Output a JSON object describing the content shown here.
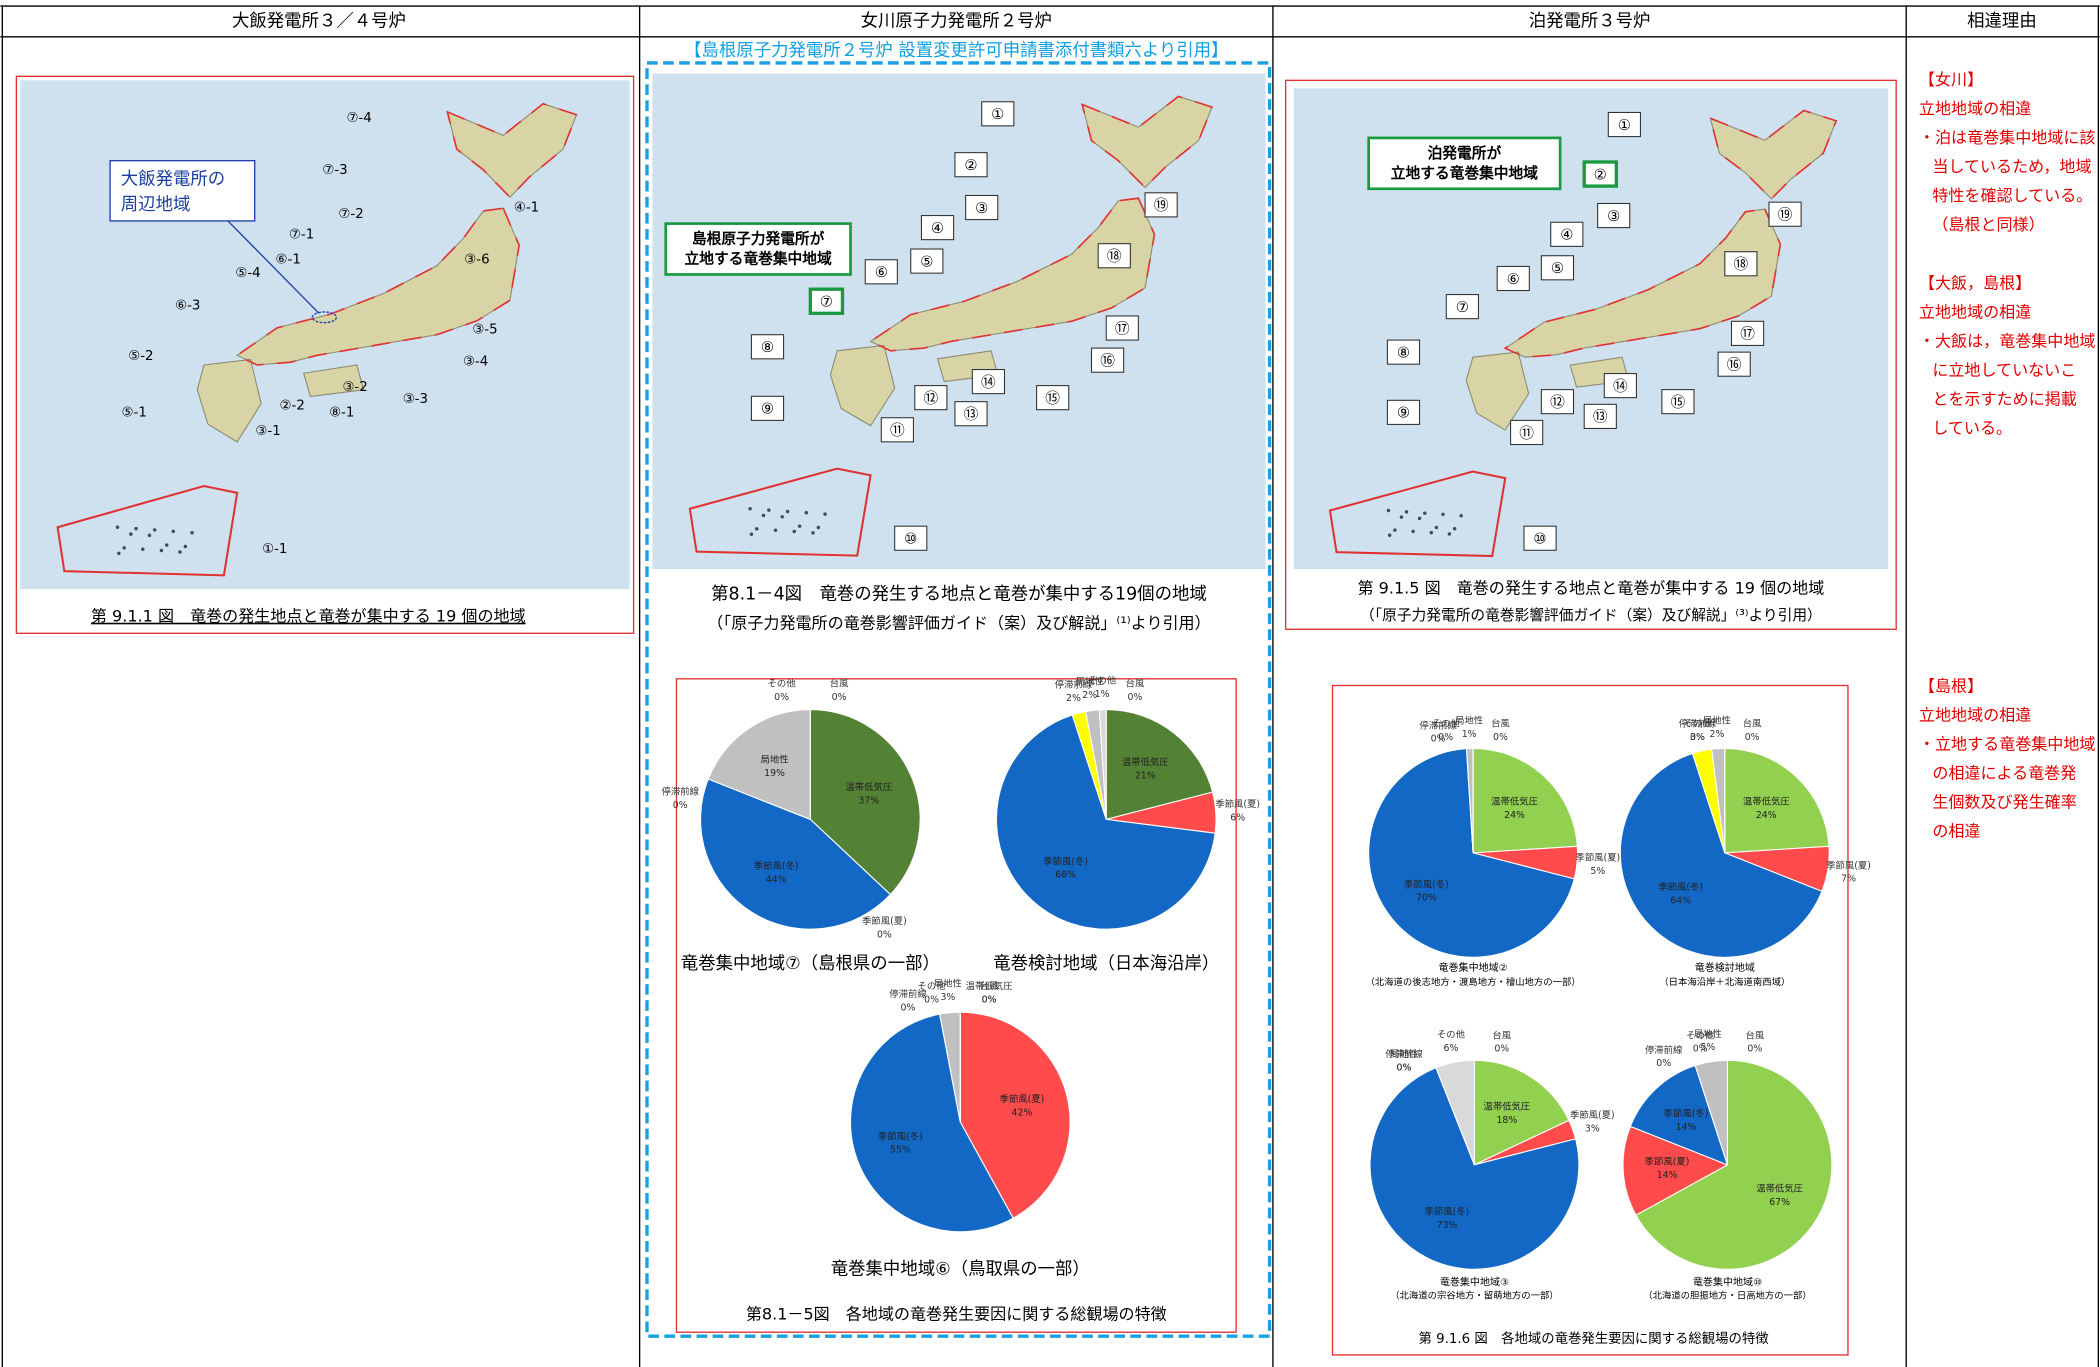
{
  "header": {
    "columns": [
      "大飯発電所３／４号炉",
      "女川原子力発電所２号炉",
      "泊発電所３号炉",
      "相違理由"
    ]
  },
  "ohi": {
    "map_labels": [
      "⑦-4",
      "⑦-3",
      "④-1",
      "⑦-2",
      "⑦-1",
      "③-6",
      "⑥-1",
      "⑤-4",
      "⑥-3",
      "③-5",
      "⑤-2",
      "③-4",
      "③-2",
      "③-3",
      "②-2",
      "⑧-1",
      "⑤-1",
      "③-1",
      "①-1"
    ],
    "callout": [
      "大飯発電所の",
      "周辺地域"
    ],
    "caption": "第 9.1.1 図　竜巻の発生地点と竜巻が集中する 19 個の地域"
  },
  "onagawa": {
    "source_note": "【島根原子力発電所２号炉 設置変更許可申請書添付書類六より引用】",
    "map_labels": [
      "①",
      "②",
      "③",
      "④",
      "⑤",
      "⑥",
      "⑦",
      "⑧",
      "⑨",
      "⑩",
      "⑪",
      "⑫",
      "⑬",
      "⑭",
      "⑮",
      "⑯",
      "⑰",
      "⑱",
      "⑲"
    ],
    "site_box": [
      "島根原子力発電所が",
      "立地する竜巻集中地域"
    ],
    "caption": [
      "第8.1－4図　竜巻の発生する地点と竜巻が集中する19個の地域",
      "（「原子力発電所の竜巻影響評価ガイド（案）及び解説」⁽¹⁾より引用）"
    ],
    "pie_caption": "第8.1－5図　各地域の竜巻発生要因に関する総観場の特徴"
  },
  "tomari": {
    "map_labels": [
      "①",
      "②",
      "③",
      "④",
      "⑤",
      "⑥",
      "⑦",
      "⑧",
      "⑨",
      "⑩",
      "⑪",
      "⑫",
      "⑬",
      "⑭",
      "⑮",
      "⑯",
      "⑰",
      "⑱",
      "⑲"
    ],
    "site_box": [
      "泊発電所が",
      "立地する竜巻集中地域"
    ],
    "caption": [
      "第 9.1.5 図　竜巻の発生する地点と竜巻が集中する 19 個の地域",
      "（「原子力発電所の竜巻影響評価ガイド（案）及び解説」⁽³⁾より引用）"
    ],
    "pie_caption": "第 9.1.6 図　各地域の竜巻発生要因に関する総観場の特徴"
  },
  "reasons": [
    [
      "【女川】",
      "立地地域の相違",
      "・泊は竜巻集中地域に該",
      "当しているため，地域",
      "特性を確認している。",
      "（島根と同様）"
    ],
    [
      "【大飯，島根】",
      "立地地域の相違",
      "・大飯は，竜巻集中地域",
      "に立地していないこ",
      "とを示すために掲載",
      "している。"
    ],
    [
      "【島根】",
      "立地地域の相違",
      "・立地する竜巻集中地域",
      "の相違による竜巻発",
      "生個数及び発生確率",
      "の相違"
    ]
  ],
  "chart_data": [
    {
      "type": "pie",
      "title": "竜巻集中地域⑦（島根県の一部）",
      "categories": [
        "台風",
        "温帯低気圧",
        "季節風(夏)",
        "季節風(冬)",
        "停滞前線",
        "局地性",
        "その他"
      ],
      "values": [
        0,
        37,
        0,
        44,
        0,
        19,
        0
      ],
      "value_labels": [
        "0%",
        "37%",
        "0%",
        "44%",
        "0%",
        "19%",
        "0%"
      ],
      "colors": [
        "#7030a0",
        "#548235",
        "#ff4b4b",
        "#1268c4",
        "#ffff00",
        "#c0c0c0",
        "#d9d9d9"
      ]
    },
    {
      "type": "pie",
      "title": "竜巻検討地域（日本海沿岸）",
      "categories": [
        "台風",
        "温帯低気圧",
        "季節風(夏)",
        "季節風(冬)",
        "停滞前線",
        "局地性",
        "その他"
      ],
      "values": [
        0,
        21,
        6,
        68,
        2,
        2,
        1
      ],
      "value_labels": [
        "0%",
        "21%",
        "6%",
        "68%",
        "2%",
        "2%",
        "1%"
      ],
      "colors": [
        "#7030a0",
        "#548235",
        "#ff4b4b",
        "#1268c4",
        "#ffff00",
        "#c0c0c0",
        "#d9d9d9"
      ]
    },
    {
      "type": "pie",
      "title": "竜巻集中地域⑥（鳥取県の一部）",
      "categories": [
        "台風",
        "温帯低気圧",
        "季節風(夏)",
        "季節風(冬)",
        "停滞前線",
        "局地性",
        "その他"
      ],
      "values": [
        0,
        0,
        42,
        55,
        0,
        3,
        0
      ],
      "value_labels": [
        "0%",
        "0%",
        "42%",
        "55%",
        "0%",
        "3%",
        "0%"
      ],
      "colors": [
        "#7030a0",
        "#548235",
        "#ff4b4b",
        "#1268c4",
        "#ffff00",
        "#c0c0c0",
        "#d9d9d9"
      ]
    },
    {
      "type": "pie",
      "title": "竜巻集中地域②",
      "subtitle": "（北海道の後志地方・渡島地方・檜山地方の一部）",
      "categories": [
        "台風",
        "温帯低気圧",
        "季節風(夏)",
        "季節風(冬)",
        "停滞前線",
        "局地性",
        "その他"
      ],
      "values": [
        0,
        24,
        5,
        70,
        0,
        1,
        0
      ],
      "value_labels": [
        "0%",
        "24%",
        "5%",
        "70%",
        "0%",
        "1%",
        "0%"
      ],
      "colors": [
        "#7030a0",
        "#92d050",
        "#ff4b4b",
        "#1268c4",
        "#ffff00",
        "#c0c0c0",
        "#d9d9d9"
      ]
    },
    {
      "type": "pie",
      "title": "竜巻検討地域",
      "subtitle": "（日本海沿岸＋北海道南西域）",
      "categories": [
        "台風",
        "温帯低気圧",
        "季節風(夏)",
        "季節風(冬)",
        "停滞前線",
        "局地性",
        "その他"
      ],
      "values": [
        0,
        24,
        7,
        64,
        3,
        2,
        0
      ],
      "value_labels": [
        "0%",
        "24%",
        "7%",
        "64%",
        "3%",
        "2%",
        "0%"
      ],
      "colors": [
        "#7030a0",
        "#92d050",
        "#ff4b4b",
        "#1268c4",
        "#ffff00",
        "#c0c0c0",
        "#d9d9d9"
      ]
    },
    {
      "type": "pie",
      "title": "竜巻集中地域③",
      "subtitle": "（北海道の宗谷地方・留萌地方の一部）",
      "categories": [
        "台風",
        "温帯低気圧",
        "季節風(夏)",
        "季節風(冬)",
        "停滞前線",
        "局地性",
        "その他"
      ],
      "values": [
        0,
        18,
        3,
        73,
        0,
        0,
        6
      ],
      "value_labels": [
        "0%",
        "18%",
        "3%",
        "73%",
        "0%",
        "0%",
        "6%"
      ],
      "colors": [
        "#7030a0",
        "#92d050",
        "#ff4b4b",
        "#1268c4",
        "#ffff00",
        "#c0c0c0",
        "#d9d9d9"
      ]
    },
    {
      "type": "pie",
      "title": "竜巻集中地域⑩",
      "subtitle": "（北海道の胆振地方・日高地方の一部）",
      "categories": [
        "台風",
        "温帯低気圧",
        "季節風(夏)",
        "季節風(冬)",
        "停滞前線",
        "局地性",
        "その他"
      ],
      "values": [
        0,
        67,
        14,
        14,
        0,
        5,
        0
      ],
      "value_labels": [
        "0%",
        "67%",
        "14%",
        "14%",
        "0%",
        "5%",
        "0%"
      ],
      "colors": [
        "#7030a0",
        "#92d050",
        "#ff4b4b",
        "#1268c4",
        "#ffff00",
        "#c0c0c0",
        "#d9d9d9"
      ]
    }
  ]
}
